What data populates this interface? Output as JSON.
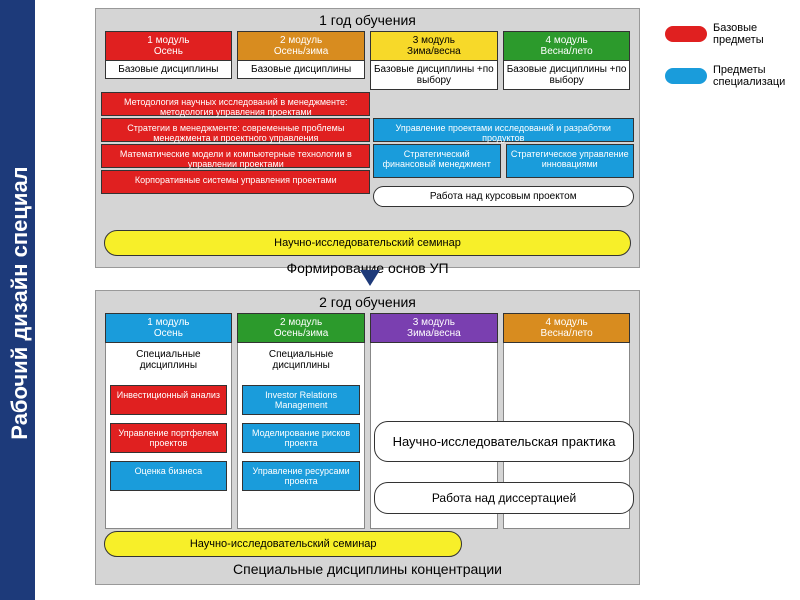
{
  "colors": {
    "red": "#e02020",
    "blue": "#1a9cdb",
    "yellow": "#f7ef29",
    "green": "#2c9a2c",
    "purple": "#7a3fb0",
    "orange": "#d88c1f",
    "darkblue": "#1d3a7a",
    "grey": "#d5d5d5",
    "white": "#ffffff"
  },
  "sidebar_title": "Рабочий дизайн специал",
  "legend": [
    {
      "label": "Базовые предметы",
      "color": "#e02020"
    },
    {
      "label": "Предметы специализаци",
      "color": "#1a9cdb"
    }
  ],
  "year1": {
    "title": "1 год обучения",
    "modules": [
      {
        "num": "1 модуль",
        "season": "Осень",
        "color": "#e02020",
        "sub": "Базовые дисциплины"
      },
      {
        "num": "2 модуль",
        "season": "Осень/зима",
        "color": "#d88c1f",
        "sub": "Базовые дисциплины"
      },
      {
        "num": "3 модуль",
        "season": "Зима/весна",
        "color": "#f7d929",
        "sub": "Базовые дисциплины +по выбору",
        "text_color": "#000"
      },
      {
        "num": "4 модуль",
        "season": "Весна/лето",
        "color": "#2c9a2c",
        "sub": "Базовые дисциплины +по выбору"
      }
    ],
    "red_rows": [
      "Методология научных исследований в менеджменте: методология управления проектами",
      "Стратегии в менеджменте: современные проблемы менеджмента и проектного управления",
      "Математические модели и компьютерные технологии в управлении проектами",
      "Корпоративные системы управления проектами"
    ],
    "blue_right": [
      {
        "text": "Управление проектами исследований и разработки продуктов",
        "span": 2
      },
      {
        "text": "Стратегический финансовый менеджмент",
        "span": 1
      },
      {
        "text": "Стратегическое управление инновациями",
        "span": 1
      }
    ],
    "coursework": "Работа над курсовым проектом",
    "seminar": "Научно-исследовательский семинар",
    "footer": "Формирование основ УП"
  },
  "year2": {
    "title": "2 год обучения",
    "modules": [
      {
        "num": "1 модуль",
        "season": "Осень",
        "color": "#1a9cdb",
        "sub": "Специальные дисциплины"
      },
      {
        "num": "2 модуль",
        "season": "Осень/зима",
        "color": "#2c9a2c",
        "sub": "Специальные дисциплины"
      },
      {
        "num": "3 модуль",
        "season": "Зима/весна",
        "color": "#7a3fb0",
        "sub": ""
      },
      {
        "num": "4 модуль",
        "season": "Весна/лето",
        "color": "#d88c1f",
        "sub": ""
      }
    ],
    "col1_blocks": [
      {
        "text": "Инвестиционный анализ",
        "color": "#e02020"
      },
      {
        "text": "Управление портфелем проектов",
        "color": "#e02020"
      },
      {
        "text": "Оценка бизнеса",
        "color": "#1a9cdb"
      }
    ],
    "col2_blocks": [
      {
        "text": "Investor Relations Management",
        "color": "#1a9cdb"
      },
      {
        "text": "Моделирование рисков проекта",
        "color": "#1a9cdb"
      },
      {
        "text": "Управление ресурсами проекта",
        "color": "#1a9cdb"
      }
    ],
    "practice": "Научно-исследовательская практика",
    "dissertation": "Работа над диссертацией",
    "seminar": "Научно-исследовательский семинар",
    "footer": "Специальные дисциплины концентрации"
  }
}
